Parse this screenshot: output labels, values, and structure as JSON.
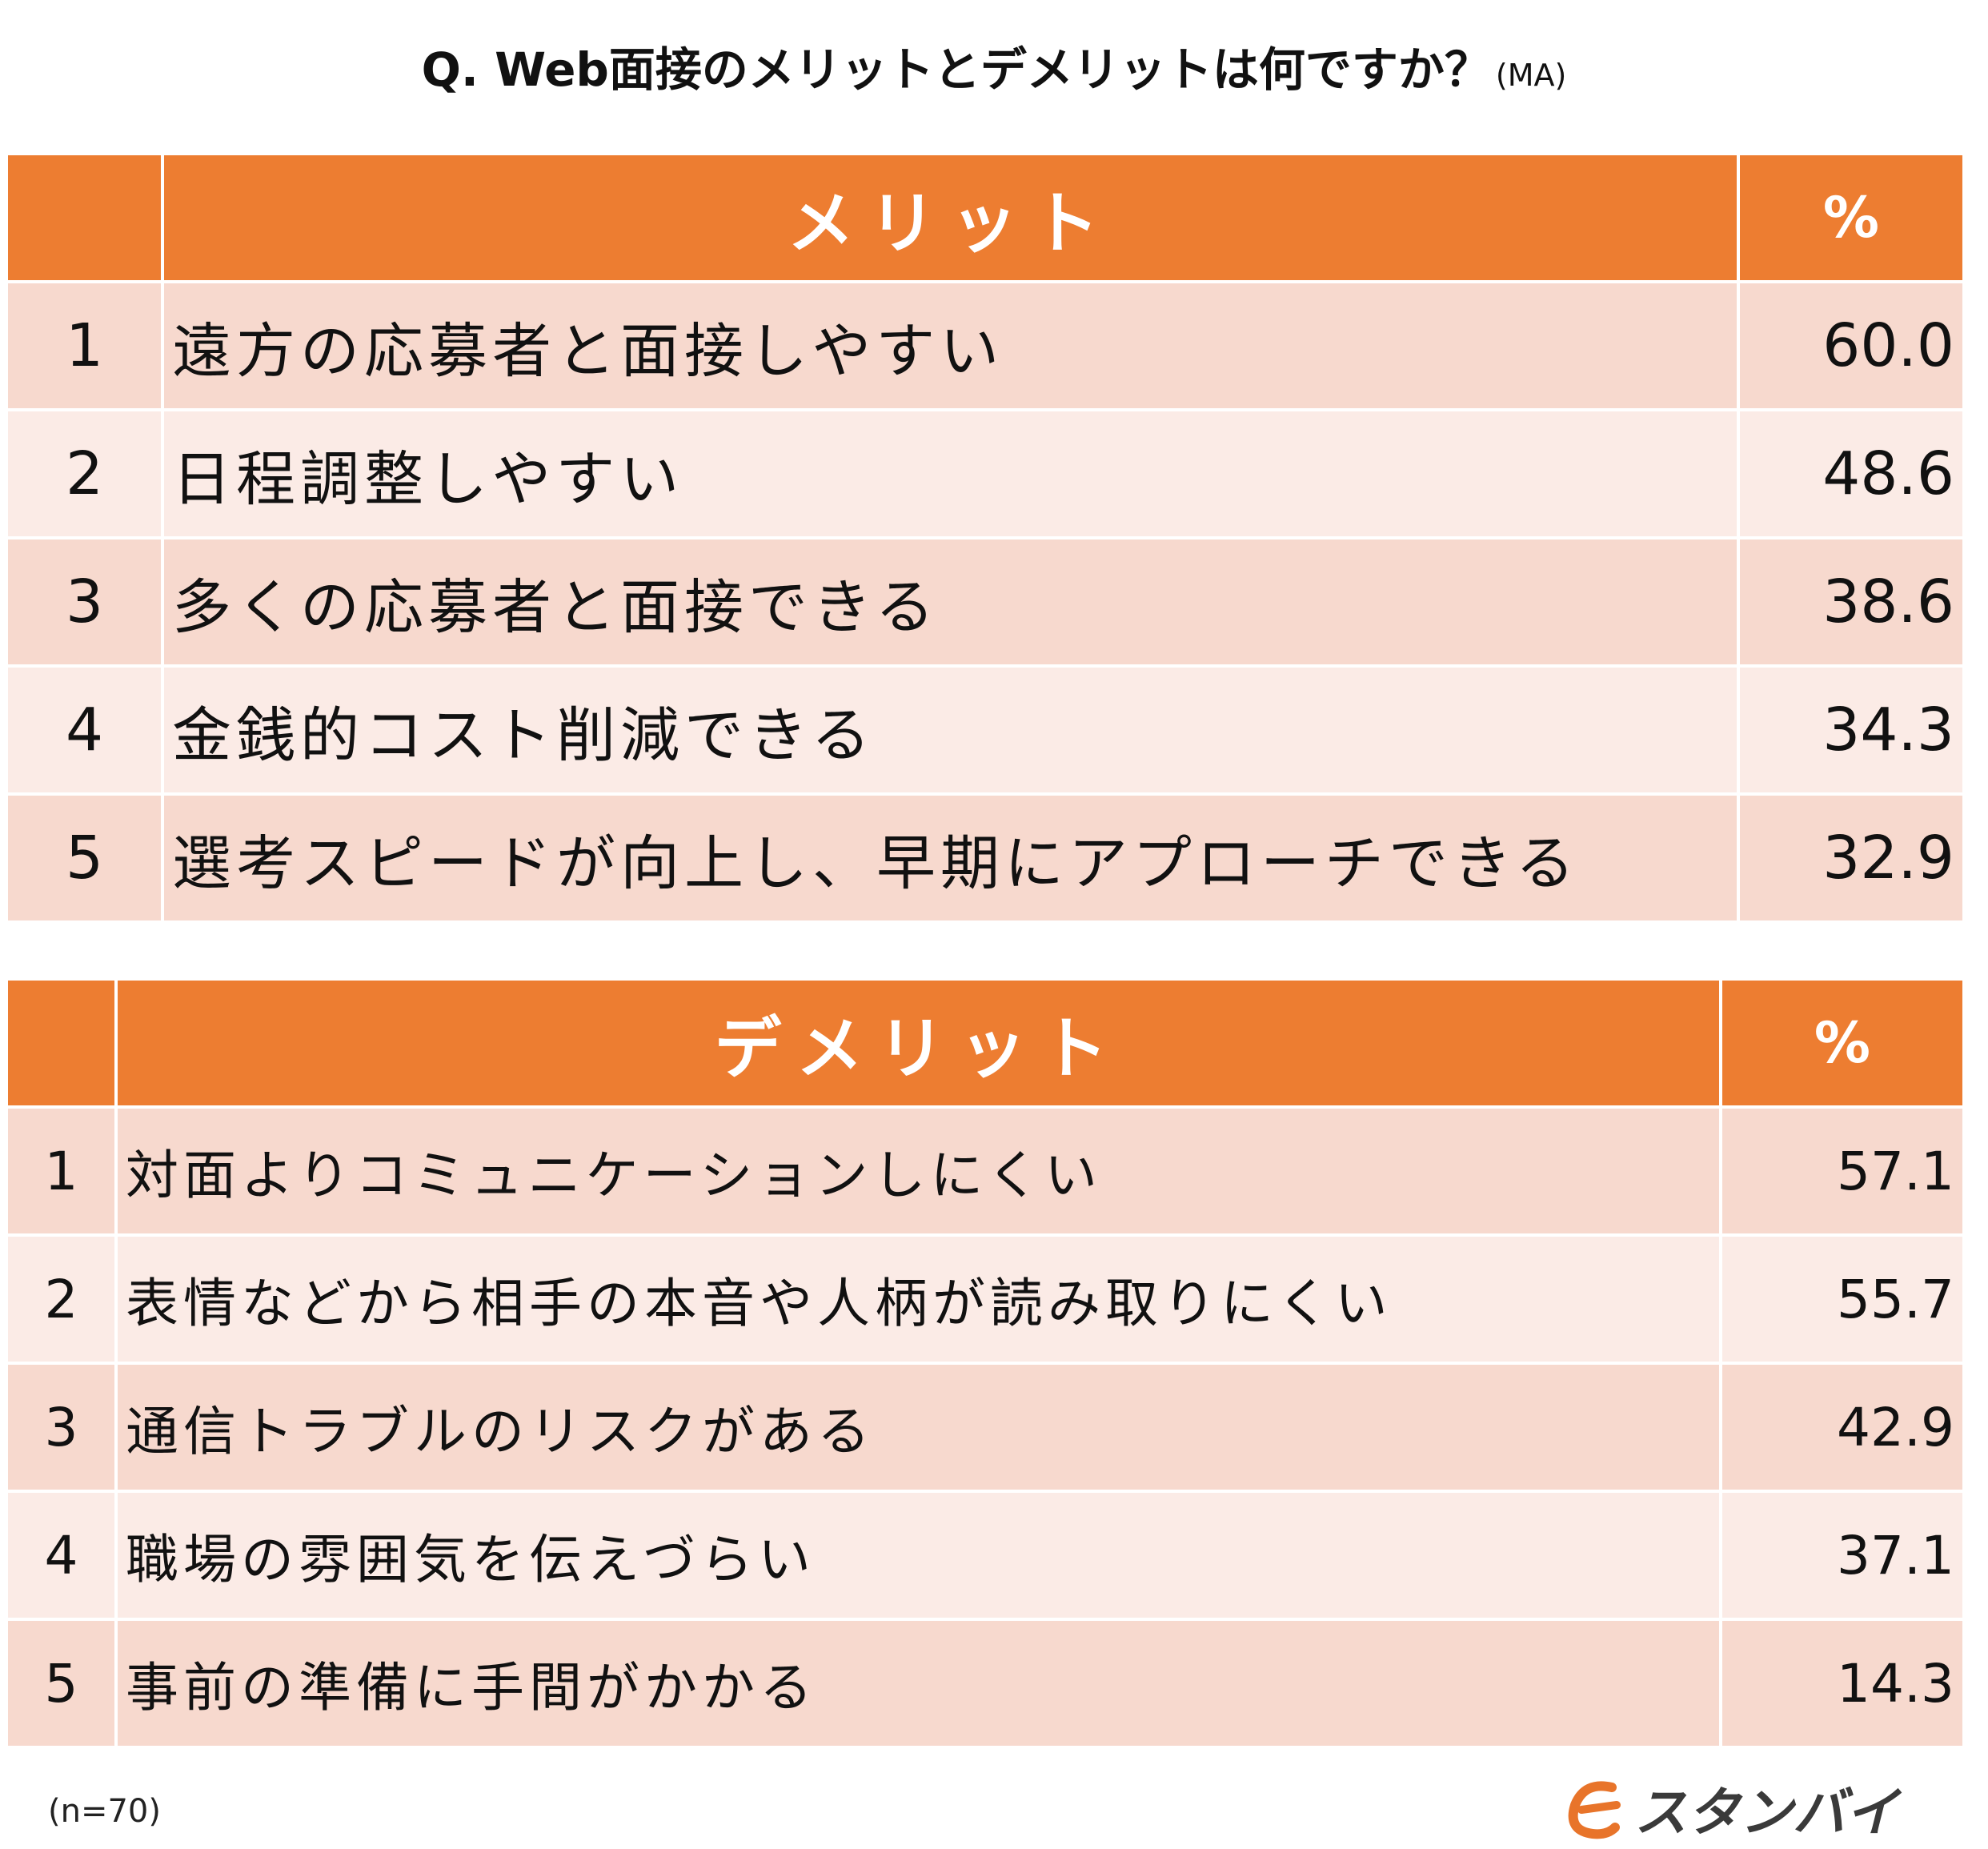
{
  "title": "Q. Web面接のメリットとデメリットは何ですか？",
  "title_suffix": "(MA)",
  "colors": {
    "header": "#ED7D31",
    "row_odd": "#F7D9CE",
    "row_even": "#FBEBE6",
    "logo": "#E8742A"
  },
  "chart_data": [
    {
      "type": "table",
      "header": {
        "rank": "",
        "label": "メリット",
        "pct": "%"
      },
      "rows": [
        {
          "rank": "1",
          "label": "遠方の応募者と面接しやすい",
          "value": "60.0"
        },
        {
          "rank": "2",
          "label": "日程調整しやすい",
          "value": "48.6"
        },
        {
          "rank": "3",
          "label": "多くの応募者と面接できる",
          "value": "38.6"
        },
        {
          "rank": "4",
          "label": "金銭的コスト削減できる",
          "value": "34.3"
        },
        {
          "rank": "5",
          "label": "選考スピードが向上し、早期にアプローチできる",
          "value": "32.9"
        }
      ]
    },
    {
      "type": "table",
      "header": {
        "rank": "",
        "label": "デメリット",
        "pct": "%"
      },
      "rows": [
        {
          "rank": "1",
          "label": "対面よりコミュニケーションしにくい",
          "value": "57.1"
        },
        {
          "rank": "2",
          "label": "表情などから相手の本音や人柄が読み取りにくい",
          "value": "55.7"
        },
        {
          "rank": "3",
          "label": "通信トラブルのリスクがある",
          "value": "42.9"
        },
        {
          "rank": "4",
          "label": "職場の雰囲気を伝えづらい",
          "value": "37.1"
        },
        {
          "rank": "5",
          "label": "事前の準備に手間がかかる",
          "value": "14.3"
        }
      ]
    }
  ],
  "note": "(n=70)",
  "logo": {
    "icon": "stanby-logo-icon",
    "text": "スタンバイ"
  }
}
